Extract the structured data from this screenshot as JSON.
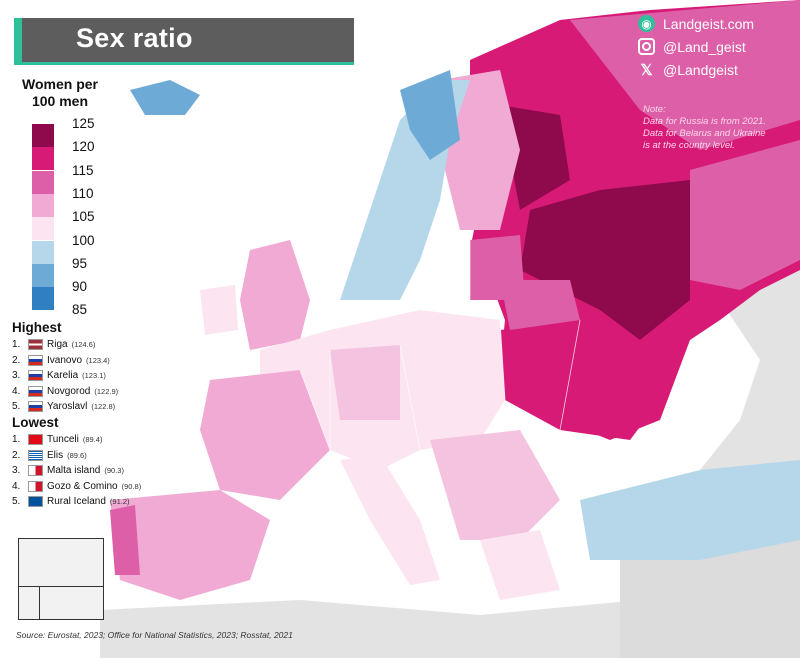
{
  "title": "Sex ratio",
  "brand": {
    "site": "Landgeist.com",
    "instagram": "@Land_geist",
    "x": "@Landgeist",
    "icons": [
      "globe-icon",
      "instagram-icon",
      "x-logo-icon"
    ]
  },
  "note": {
    "heading": "Note:",
    "lines": [
      "Data for Russia is from 2021.",
      "Data for Belarus and Ukraine",
      "is at the country level."
    ]
  },
  "legend": {
    "title_line1": "Women per",
    "title_line2": "100 men",
    "ticks": [
      "125",
      "120",
      "115",
      "110",
      "105",
      "100",
      "95",
      "90",
      "85"
    ],
    "colors": [
      "#8e0a4c",
      "#d71a75",
      "#dd5fa8",
      "#f0aad3",
      "#fce4f1",
      "#b6d7ea",
      "#6eaad6",
      "#2f7fc2"
    ]
  },
  "highest": {
    "heading": "Highest",
    "items": [
      {
        "rank": "1.",
        "name": "Riga",
        "value": "(124.6)",
        "flag": "latvia"
      },
      {
        "rank": "2.",
        "name": "Ivanovo",
        "value": "(123.4)",
        "flag": "russia"
      },
      {
        "rank": "3.",
        "name": "Karelia",
        "value": "(123.1)",
        "flag": "russia"
      },
      {
        "rank": "4.",
        "name": "Novgorod",
        "value": "(122.9)",
        "flag": "russia"
      },
      {
        "rank": "5.",
        "name": "Yaroslavl",
        "value": "(122.8)",
        "flag": "russia"
      }
    ]
  },
  "lowest": {
    "heading": "Lowest",
    "items": [
      {
        "rank": "1.",
        "name": "Tunceli",
        "value": "(89.4)",
        "flag": "turkey"
      },
      {
        "rank": "2.",
        "name": "Elis",
        "value": "(89.6)",
        "flag": "greece"
      },
      {
        "rank": "3.",
        "name": "Malta island",
        "value": "(90.3)",
        "flag": "malta"
      },
      {
        "rank": "4.",
        "name": "Gozo & Comino",
        "value": "(90.8)",
        "flag": "malta"
      },
      {
        "rank": "5.",
        "name": "Rural Iceland",
        "value": "(91.2)",
        "flag": "iceland"
      }
    ]
  },
  "source": "Source: Eurostat, 2023; Office for National Statistics, 2023; Rosstat, 2021",
  "colors": {
    "sea": "#ffffff",
    "outside_land": "#e3e3e3",
    "title_bg": "#5d5d5d",
    "title_accent": "#2fbf9a"
  }
}
